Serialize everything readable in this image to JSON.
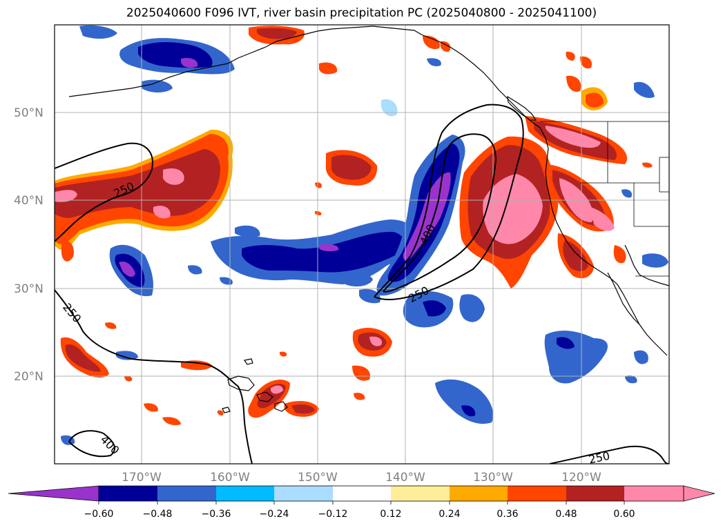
{
  "title": "2025040600 F096 IVT, river basin precipitation PC (2025040800 - 2025041100)",
  "lat_labels": [
    "50°N",
    "40°N",
    "30°N",
    "20°N"
  ],
  "lon_labels": [
    "170°W",
    "160°W",
    "150°W",
    "140°W",
    "130°W",
    "120°W"
  ],
  "colorbar": {
    "tick_labels": [
      "−0.60",
      "−0.48",
      "−0.36",
      "−0.24",
      "−0.12",
      "0.12",
      "0.24",
      "0.36",
      "0.48",
      "0.60"
    ],
    "colors": [
      "#9933cc",
      "#000099",
      "#3366cc",
      "#00bbff",
      "#aaddff",
      "#ffffff",
      "#ffee99",
      "#ffaa00",
      "#ff4500",
      "#b22222",
      "#ff88aa"
    ]
  },
  "contour_labels": [
    "250",
    "250",
    "250",
    "400",
    "400",
    "250"
  ],
  "colors": {
    "gridline": "#b0b0b0",
    "coastline": "#000000"
  }
}
